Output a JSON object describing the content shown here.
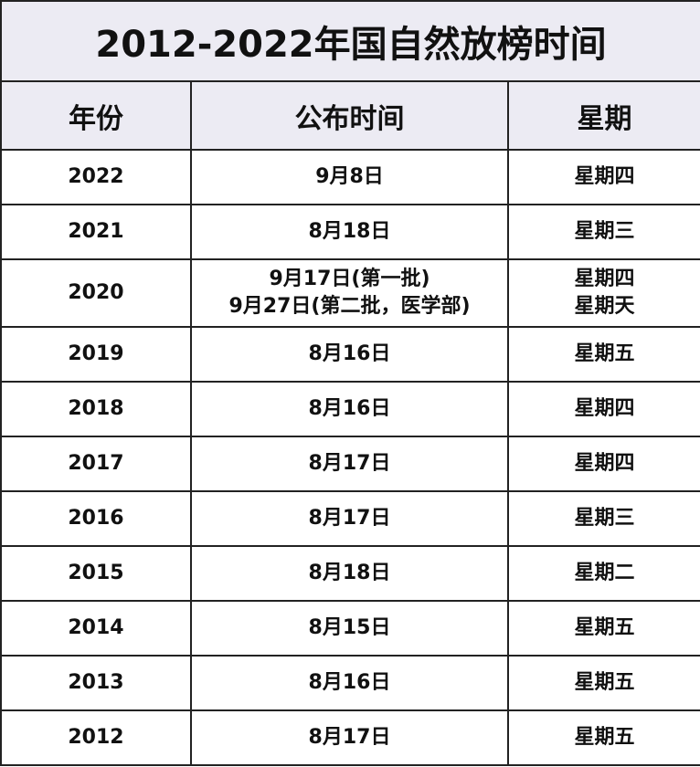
{
  "title": "2012-2022年国自然放榜时间",
  "headers": [
    "年份",
    "公布时间",
    "星期"
  ],
  "rows": [
    {
      "year": "2022",
      "date": [
        "9月8日"
      ],
      "weekday": [
        "星期四"
      ]
    },
    {
      "year": "2021",
      "date": [
        "8月18日"
      ],
      "weekday": [
        "星期三"
      ]
    },
    {
      "year": "2020",
      "date": [
        "9月17日(第一批)",
        "9月27日(第二批，医学部)"
      ],
      "weekday": [
        "星期四",
        "星期天"
      ]
    },
    {
      "year": "2019",
      "date": [
        "8月16日"
      ],
      "weekday": [
        "星期五"
      ]
    },
    {
      "year": "2018",
      "date": [
        "8月16日"
      ],
      "weekday": [
        "星期四"
      ]
    },
    {
      "year": "2017",
      "date": [
        "8月17日"
      ],
      "weekday": [
        "星期四"
      ]
    },
    {
      "year": "2016",
      "date": [
        "8月17日"
      ],
      "weekday": [
        "星期三"
      ]
    },
    {
      "year": "2015",
      "date": [
        "8月18日"
      ],
      "weekday": [
        "星期二"
      ]
    },
    {
      "year": "2014",
      "date": [
        "8月15日"
      ],
      "weekday": [
        "星期五"
      ]
    },
    {
      "year": "2013",
      "date": [
        "8月16日"
      ],
      "weekday": [
        "星期五"
      ]
    },
    {
      "year": "2012",
      "date": [
        "8月17日"
      ],
      "weekday": [
        "星期五"
      ]
    }
  ],
  "colors": {
    "header_bg": "#ecebf3",
    "border": "#222222"
  }
}
